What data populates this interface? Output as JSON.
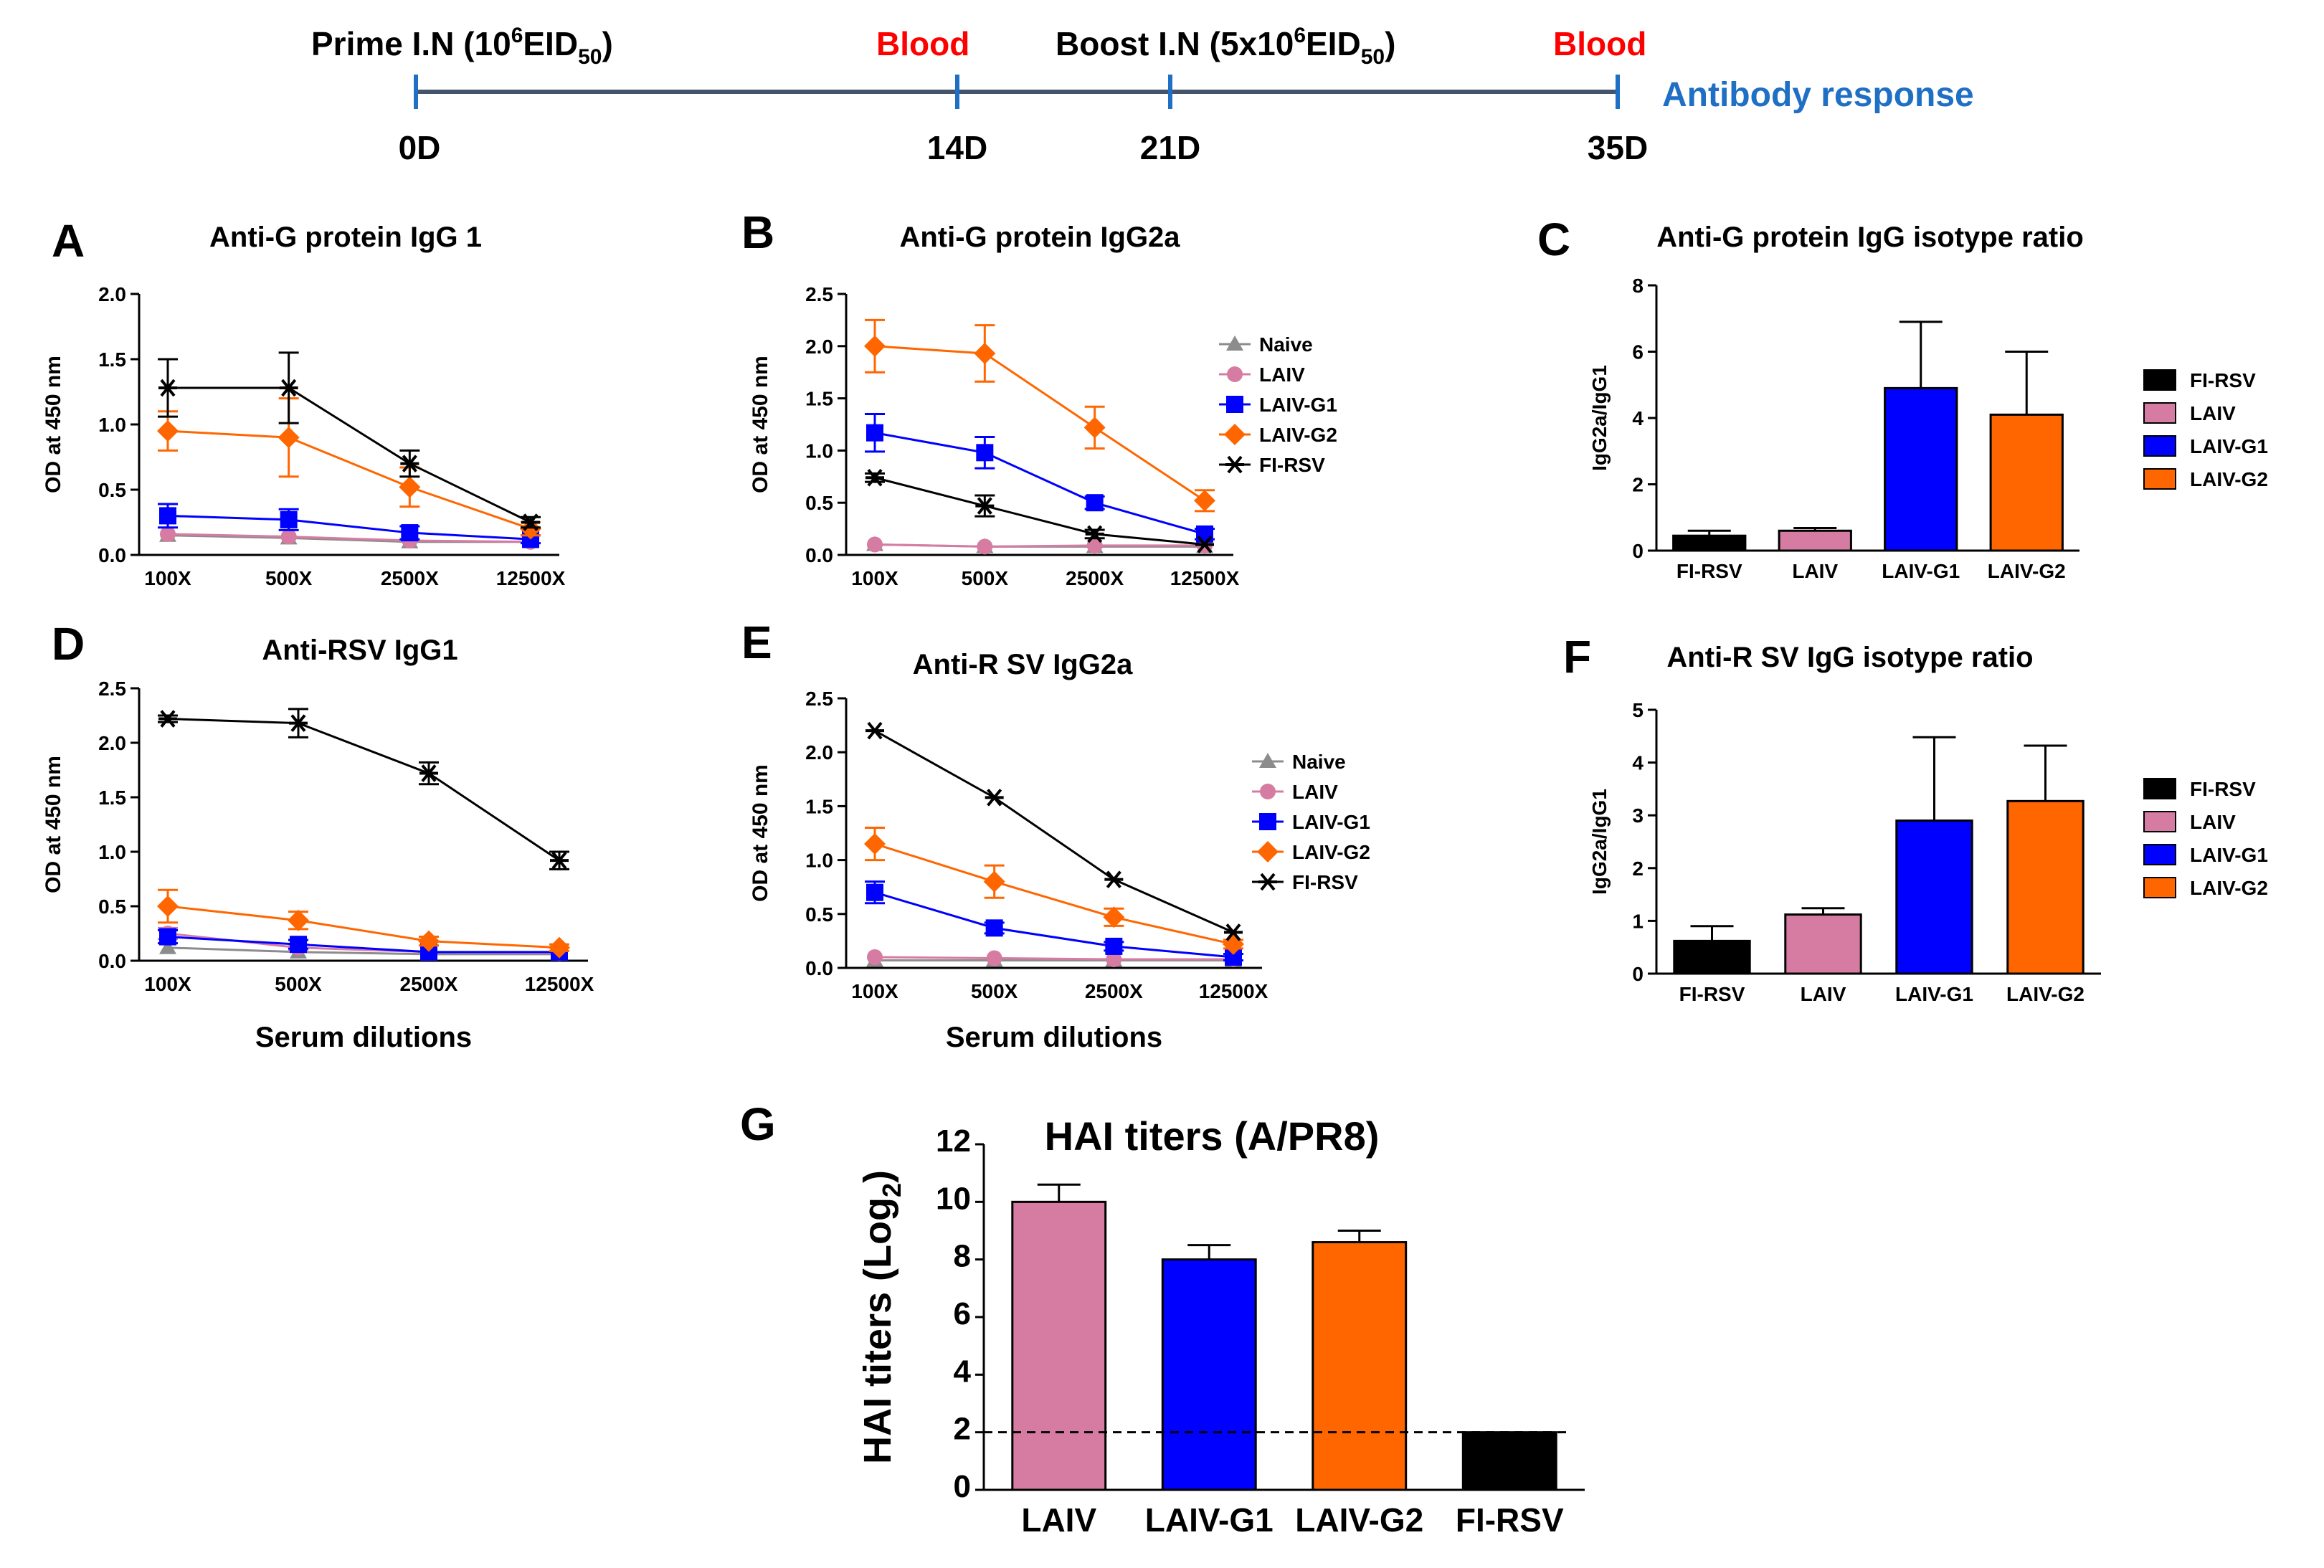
{
  "timeline": {
    "events": [
      {
        "label_pre": "Prime I.N (10",
        "label_sup": "6",
        "label_mid": "EID",
        "label_sub": "50",
        "label_post": ")",
        "color": "#000000"
      },
      {
        "label_pre": "Blood",
        "label_sup": "",
        "label_mid": "",
        "label_sub": "",
        "label_post": "",
        "color": "#ff0000"
      },
      {
        "label_pre": "Boost I.N (5x10",
        "label_sup": "6",
        "label_mid": "EID",
        "label_sub": "50",
        "label_post": ")",
        "color": "#000000"
      },
      {
        "label_pre": "Blood",
        "label_sup": "",
        "label_mid": "",
        "label_sub": "",
        "label_post": "",
        "color": "#ff0000"
      }
    ],
    "days": [
      "0D",
      "14D",
      "21D",
      "35D"
    ],
    "end_label": "Antibody response",
    "end_color": "#1f6fc4"
  },
  "colors": {
    "Naive": "#8c8c8c",
    "LAIV": "#d67ca2",
    "LAIV-G1": "#0000ff",
    "LAIV-G2": "#ff6600",
    "FI-RSV": "#000000"
  },
  "chart_data": [
    {
      "panel": "A",
      "type": "line",
      "title": "Anti-G protein IgG 1",
      "ylabel": "OD at 450 nm",
      "xlabel": "",
      "categories": [
        "100X",
        "500X",
        "2500X",
        "12500X"
      ],
      "ylim": [
        0,
        2.0
      ],
      "yticks": [
        "0.0",
        "0.5",
        "1.0",
        "1.5",
        "2.0"
      ],
      "legend": false,
      "series": [
        {
          "name": "Naive",
          "values": [
            0.15,
            0.13,
            0.1,
            0.1
          ],
          "err": [
            0.02,
            0.02,
            0.02,
            0.02
          ]
        },
        {
          "name": "LAIV",
          "values": [
            0.16,
            0.14,
            0.11,
            0.1
          ],
          "err": [
            0.02,
            0.02,
            0.02,
            0.02
          ]
        },
        {
          "name": "LAIV-G1",
          "values": [
            0.3,
            0.27,
            0.17,
            0.12
          ],
          "err": [
            0.09,
            0.08,
            0.05,
            0.03
          ]
        },
        {
          "name": "LAIV-G2",
          "values": [
            0.95,
            0.9,
            0.52,
            0.2
          ],
          "err": [
            0.15,
            0.3,
            0.15,
            0.05
          ]
        },
        {
          "name": "FI-RSV",
          "values": [
            1.28,
            1.28,
            0.7,
            0.25
          ],
          "err": [
            0.22,
            0.27,
            0.1,
            0.04
          ]
        }
      ]
    },
    {
      "panel": "B",
      "type": "line",
      "title": "Anti-G protein IgG2a",
      "ylabel": "OD at 450 nm",
      "xlabel": "",
      "categories": [
        "100X",
        "500X",
        "2500X",
        "12500X"
      ],
      "ylim": [
        0,
        2.5
      ],
      "yticks": [
        "0.0",
        "0.5",
        "1.0",
        "1.5",
        "2.0",
        "2.5"
      ],
      "legend": true,
      "series": [
        {
          "name": "Naive",
          "values": [
            0.1,
            0.08,
            0.08,
            0.08
          ],
          "err": [
            0.02,
            0.02,
            0.02,
            0.02
          ]
        },
        {
          "name": "LAIV",
          "values": [
            0.1,
            0.08,
            0.09,
            0.09
          ],
          "err": [
            0.02,
            0.02,
            0.02,
            0.02
          ]
        },
        {
          "name": "LAIV-G1",
          "values": [
            1.17,
            0.98,
            0.5,
            0.2
          ],
          "err": [
            0.18,
            0.15,
            0.06,
            0.05
          ]
        },
        {
          "name": "LAIV-G2",
          "values": [
            2.0,
            1.93,
            1.22,
            0.52
          ],
          "err": [
            0.25,
            0.27,
            0.2,
            0.1
          ]
        },
        {
          "name": "FI-RSV",
          "values": [
            0.74,
            0.47,
            0.2,
            0.1
          ],
          "err": [
            0.04,
            0.1,
            0.04,
            0.02
          ]
        }
      ]
    },
    {
      "panel": "C",
      "type": "bar",
      "title": "Anti-G protein IgG isotype ratio",
      "ylabel": "IgG2a/IgG1",
      "xlabel": "",
      "categories": [
        "FI-RSV",
        "LAIV",
        "LAIV-G1",
        "LAIV-G2"
      ],
      "ylim": [
        0,
        8
      ],
      "yticks": [
        "0",
        "2",
        "4",
        "6",
        "8"
      ],
      "values": [
        0.45,
        0.6,
        4.9,
        4.1
      ],
      "err": [
        0.15,
        0.08,
        2.0,
        1.9
      ],
      "legend": [
        "FI-RSV",
        "LAIV",
        "LAIV-G1",
        "LAIV-G2"
      ]
    },
    {
      "panel": "D",
      "type": "line",
      "title": "Anti-RSV IgG1",
      "ylabel": "OD at 450 nm",
      "xlabel": "Serum dilutions",
      "categories": [
        "100X",
        "500X",
        "2500X",
        "12500X"
      ],
      "ylim": [
        0,
        2.5
      ],
      "yticks": [
        "0.0",
        "0.5",
        "1.0",
        "1.5",
        "2.0",
        "2.5"
      ],
      "legend": false,
      "series": [
        {
          "name": "Naive",
          "values": [
            0.12,
            0.08,
            0.06,
            0.06
          ],
          "err": [
            0.02,
            0.02,
            0.02,
            0.02
          ]
        },
        {
          "name": "LAIV",
          "values": [
            0.25,
            0.12,
            0.08,
            0.07
          ],
          "err": [
            0.05,
            0.03,
            0.02,
            0.02
          ]
        },
        {
          "name": "LAIV-G1",
          "values": [
            0.22,
            0.15,
            0.08,
            0.08
          ],
          "err": [
            0.06,
            0.04,
            0.02,
            0.02
          ]
        },
        {
          "name": "LAIV-G2",
          "values": [
            0.5,
            0.37,
            0.18,
            0.12
          ],
          "err": [
            0.15,
            0.08,
            0.04,
            0.03
          ]
        },
        {
          "name": "FI-RSV",
          "values": [
            2.22,
            2.18,
            1.72,
            0.92
          ],
          "err": [
            0.03,
            0.13,
            0.1,
            0.08
          ]
        }
      ]
    },
    {
      "panel": "E",
      "type": "line",
      "title": "Anti-R SV IgG2a",
      "ylabel": "OD at 450 nm",
      "xlabel": "Serum dilutions",
      "categories": [
        "100X",
        "500X",
        "2500X",
        "12500X"
      ],
      "ylim": [
        0,
        2.5
      ],
      "yticks": [
        "0.0",
        "0.5",
        "1.0",
        "1.5",
        "2.0",
        "2.5"
      ],
      "legend": true,
      "series": [
        {
          "name": "Naive",
          "values": [
            0.07,
            0.07,
            0.07,
            0.07
          ],
          "err": [
            0.02,
            0.02,
            0.02,
            0.02
          ]
        },
        {
          "name": "LAIV",
          "values": [
            0.1,
            0.09,
            0.08,
            0.08
          ],
          "err": [
            0.02,
            0.02,
            0.02,
            0.02
          ]
        },
        {
          "name": "LAIV-G1",
          "values": [
            0.7,
            0.37,
            0.2,
            0.1
          ],
          "err": [
            0.1,
            0.05,
            0.04,
            0.03
          ]
        },
        {
          "name": "LAIV-G2",
          "values": [
            1.15,
            0.8,
            0.47,
            0.22
          ],
          "err": [
            0.15,
            0.15,
            0.08,
            0.04
          ]
        },
        {
          "name": "FI-RSV",
          "values": [
            2.2,
            1.58,
            0.82,
            0.33
          ],
          "err": [
            0.02,
            0.02,
            0.02,
            0.02
          ]
        }
      ]
    },
    {
      "panel": "F",
      "type": "bar",
      "title": "Anti-R SV IgG isotype ratio",
      "ylabel": "IgG2a/IgG1",
      "xlabel": "",
      "categories": [
        "FI-RSV",
        "LAIV",
        "LAIV-G1",
        "LAIV-G2"
      ],
      "ylim": [
        0,
        5
      ],
      "yticks": [
        "0",
        "1",
        "2",
        "3",
        "4",
        "5"
      ],
      "values": [
        0.62,
        1.12,
        2.9,
        3.27
      ],
      "err": [
        0.28,
        0.12,
        1.58,
        1.05
      ],
      "legend": [
        "FI-RSV",
        "LAIV",
        "LAIV-G1",
        "LAIV-G2"
      ]
    },
    {
      "panel": "G",
      "type": "bar",
      "title": "HAI titers (A/PR8)",
      "ylabel_pre": "HAI titers (Log",
      "ylabel_sub": "2",
      "ylabel_post": ")",
      "xlabel": "",
      "categories": [
        "LAIV",
        "LAIV-G1",
        "LAIV-G2",
        "FI-RSV"
      ],
      "ylim": [
        0,
        12
      ],
      "yticks": [
        "0",
        "2",
        "4",
        "6",
        "8",
        "10",
        "12"
      ],
      "values": [
        10.0,
        8.0,
        8.6,
        2.0
      ],
      "err": [
        0.6,
        0.5,
        0.4,
        0.0
      ],
      "reference_line": 2,
      "legend": false
    }
  ]
}
